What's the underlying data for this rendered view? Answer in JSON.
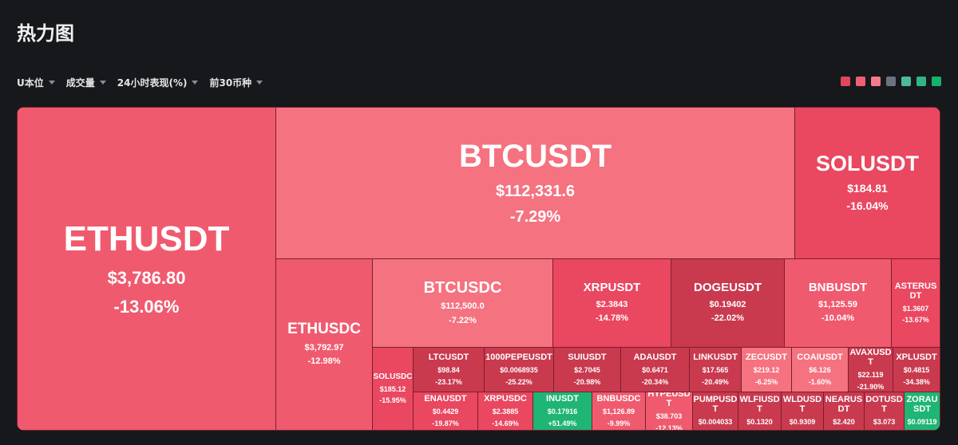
{
  "page": {
    "title": "热力图"
  },
  "filters": [
    {
      "label": "U本位",
      "name": "filter-margin-type"
    },
    {
      "label": "成交量",
      "name": "filter-metric"
    },
    {
      "label": "24小时表现(%)",
      "name": "filter-performance"
    },
    {
      "label": "前30币种",
      "name": "filter-top-coins"
    }
  ],
  "legend": {
    "colors": [
      "#e0475c",
      "#ee5f73",
      "#f47c8a",
      "#6b7280",
      "#4fb79c",
      "#2fb585",
      "#14b26b"
    ]
  },
  "colors": {
    "deep": "#c93a4f",
    "strong": "#ea4760",
    "mid": "#f05a6e",
    "light": "#f57280",
    "green": "#1fb574"
  },
  "tiles": [
    {
      "symbol": "ETHUSDT",
      "price": "$3,786.80",
      "change": "-13.06%",
      "shade": "mid"
    },
    {
      "symbol": "BTCUSDT",
      "price": "$112,331.6",
      "change": "-7.29%",
      "shade": "light"
    },
    {
      "symbol": "SOLUSDT",
      "price": "$184.81",
      "change": "-16.04%",
      "shade": "strong"
    },
    {
      "symbol": "ETHUSDC",
      "price": "$3,792.97",
      "change": "-12.98%",
      "shade": "mid"
    },
    {
      "symbol": "BTCUSDC",
      "price": "$112,500.0",
      "change": "-7.22%",
      "shade": "light"
    },
    {
      "symbol": "XRPUSDT",
      "price": "$2.3843",
      "change": "-14.78%",
      "shade": "strong"
    },
    {
      "symbol": "DOGEUSDT",
      "price": "$0.19402",
      "change": "-22.02%",
      "shade": "deep"
    },
    {
      "symbol": "BNBUSDT",
      "price": "$1,125.59",
      "change": "-10.04%",
      "shade": "mid"
    },
    {
      "symbol": "ASTERUSDT",
      "price": "$1.3607",
      "change": "-13.67%",
      "shade": "strong"
    },
    {
      "symbol": "SOLUSDC",
      "price": "$185.12",
      "change": "-15.95%",
      "shade": "strong"
    },
    {
      "symbol": "LTCUSDT",
      "price": "$98.84",
      "change": "-23.17%",
      "shade": "deep"
    },
    {
      "symbol": "1000PEPEUSDT",
      "price": "$0.0068935",
      "change": "-25.22%",
      "shade": "deep"
    },
    {
      "symbol": "SUIUSDT",
      "price": "$2.7045",
      "change": "-20.98%",
      "shade": "deep"
    },
    {
      "symbol": "ADAUSDT",
      "price": "$0.6471",
      "change": "-20.34%",
      "shade": "deep"
    },
    {
      "symbol": "LINKUSDT",
      "price": "$17.565",
      "change": "-20.49%",
      "shade": "deep"
    },
    {
      "symbol": "ZECUSDT",
      "price": "$219.12",
      "change": "-6.25%",
      "shade": "light"
    },
    {
      "symbol": "COAIUSDT",
      "price": "$6.126",
      "change": "-1.60%",
      "shade": "light"
    },
    {
      "symbol": "AVAXUSDT",
      "price": "$22.119",
      "change": "-21.90%",
      "shade": "deep"
    },
    {
      "symbol": "XPLUSDT",
      "price": "$0.4815",
      "change": "-34.38%",
      "shade": "deep"
    },
    {
      "symbol": "ENAUSDT",
      "price": "$0.4429",
      "change": "-19.87%",
      "shade": "strong"
    },
    {
      "symbol": "XRPUSDC",
      "price": "$2.3885",
      "change": "-14.69%",
      "shade": "strong"
    },
    {
      "symbol": "INUSDT",
      "price": "$0.17916",
      "change": "+51.49%",
      "shade": "green"
    },
    {
      "symbol": "BNBUSDC",
      "price": "$1,126.89",
      "change": "-9.99%",
      "shade": "mid"
    },
    {
      "symbol": "HYPEUSDT",
      "price": "$38.703",
      "change": "-12.13%",
      "shade": "mid"
    },
    {
      "symbol": "PUMPUSDT",
      "price": "$0.004033",
      "change": "",
      "shade": "deep"
    },
    {
      "symbol": "WLFIUSDT",
      "price": "$0.1320",
      "change": "",
      "shade": "deep"
    },
    {
      "symbol": "WLDUSDT",
      "price": "$0.9309",
      "change": "",
      "shade": "deep"
    },
    {
      "symbol": "NEARUSDT",
      "price": "$2.420",
      "change": "",
      "shade": "deep"
    },
    {
      "symbol": "DOTUSDT",
      "price": "$3.073",
      "change": "",
      "shade": "deep"
    },
    {
      "symbol": "ZORAUSDT",
      "price": "$0.09119",
      "change": "",
      "shade": "green"
    }
  ]
}
